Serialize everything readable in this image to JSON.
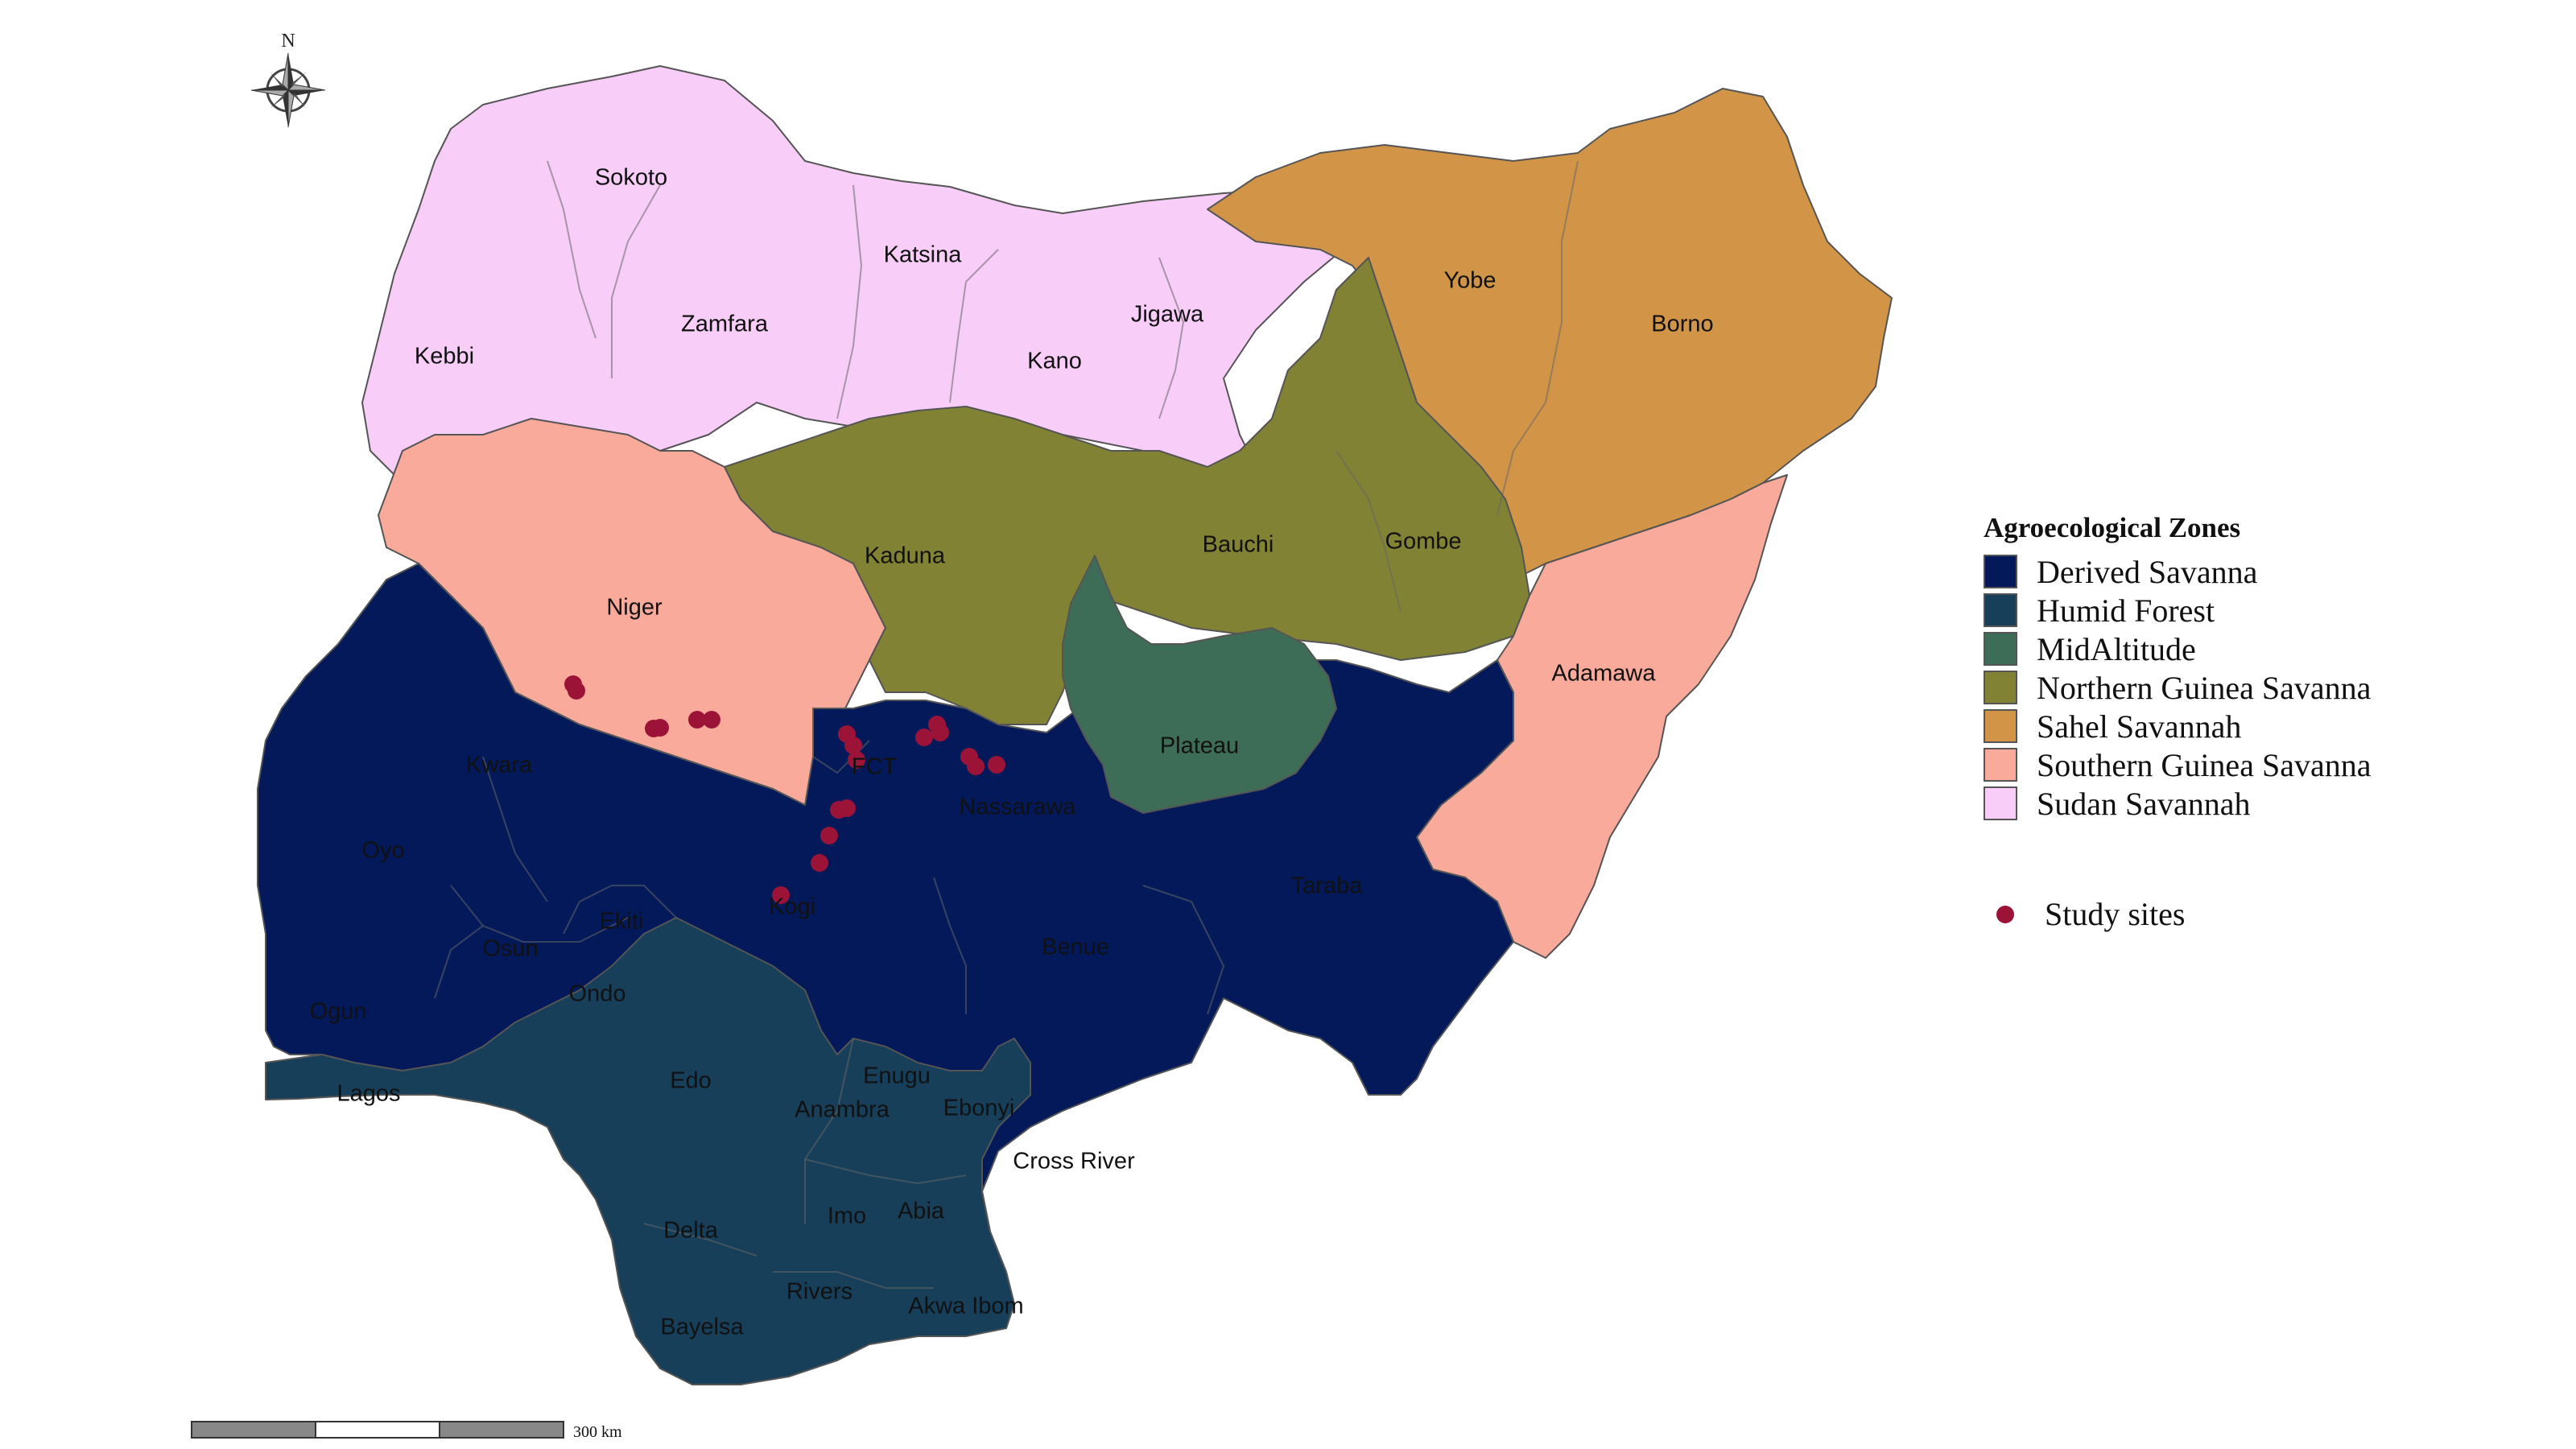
{
  "map": {
    "compass_label": "N",
    "scale_label": "300 km",
    "colors": {
      "derived_savanna": "#03195A",
      "humid_forest": "#173F5A",
      "midaltitude": "#3D6C57",
      "northern_guinea_savanna": "#818234",
      "sahel_savannah": "#D29548",
      "southern_guinea_savanna": "#F9AA9B",
      "sudan_savannah": "#F8CDF8",
      "study_site": "#9B1438"
    },
    "states": [
      {
        "name": "Sokoto",
        "zone": "sudan_savannah"
      },
      {
        "name": "Katsina",
        "zone": "sudan_savannah"
      },
      {
        "name": "Zamfara",
        "zone": "sudan_savannah"
      },
      {
        "name": "Jigawa",
        "zone": "sudan_savannah"
      },
      {
        "name": "Kebbi",
        "zone": "sudan_savannah"
      },
      {
        "name": "Kano",
        "zone": "sudan_savannah"
      },
      {
        "name": "Yobe",
        "zone": "sahel_savannah"
      },
      {
        "name": "Borno",
        "zone": "sahel_savannah"
      },
      {
        "name": "Kaduna",
        "zone": "northern_guinea_savanna"
      },
      {
        "name": "Bauchi",
        "zone": "northern_guinea_savanna"
      },
      {
        "name": "Gombe",
        "zone": "northern_guinea_savanna"
      },
      {
        "name": "Niger",
        "zone": "southern_guinea_savanna"
      },
      {
        "name": "Adamawa",
        "zone": "southern_guinea_savanna"
      },
      {
        "name": "Plateau",
        "zone": "midaltitude"
      },
      {
        "name": "Kwara",
        "zone": "derived_savanna"
      },
      {
        "name": "FCT",
        "zone": "derived_savanna"
      },
      {
        "name": "Nassarawa",
        "zone": "derived_savanna"
      },
      {
        "name": "Oyo",
        "zone": "derived_savanna"
      },
      {
        "name": "Taraba",
        "zone": "derived_savanna"
      },
      {
        "name": "Kogi",
        "zone": "derived_savanna"
      },
      {
        "name": "Ekiti",
        "zone": "derived_savanna"
      },
      {
        "name": "Osun",
        "zone": "derived_savanna"
      },
      {
        "name": "Benue",
        "zone": "derived_savanna"
      },
      {
        "name": "Ogun",
        "zone": "derived_savanna"
      },
      {
        "name": "Ondo",
        "zone": "humid_forest"
      },
      {
        "name": "Lagos",
        "zone": "humid_forest"
      },
      {
        "name": "Edo",
        "zone": "humid_forest"
      },
      {
        "name": "Enugu",
        "zone": "derived_savanna"
      },
      {
        "name": "Anambra",
        "zone": "humid_forest"
      },
      {
        "name": "Ebonyi",
        "zone": "humid_forest"
      },
      {
        "name": "Cross River",
        "zone": "derived_savanna"
      },
      {
        "name": "Delta",
        "zone": "humid_forest"
      },
      {
        "name": "Imo",
        "zone": "humid_forest"
      },
      {
        "name": "Abia",
        "zone": "humid_forest"
      },
      {
        "name": "Rivers",
        "zone": "humid_forest"
      },
      {
        "name": "Akwa Ibom",
        "zone": "humid_forest"
      },
      {
        "name": "Bayelsa",
        "zone": "humid_forest"
      }
    ]
  },
  "legend": {
    "title": "Agroecological Zones",
    "items": [
      {
        "label": "Derived Savanna",
        "zone": "derived_savanna"
      },
      {
        "label": "Humid Forest",
        "zone": "humid_forest"
      },
      {
        "label": "MidAltitude",
        "zone": "midaltitude"
      },
      {
        "label": "Northern Guinea Savanna",
        "zone": "northern_guinea_savanna"
      },
      {
        "label": "Sahel Savannah",
        "zone": "sahel_savannah"
      },
      {
        "label": "Southern Guinea Savanna",
        "zone": "southern_guinea_savanna"
      },
      {
        "label": "Sudan Savannah",
        "zone": "sudan_savannah"
      }
    ],
    "sites_label": "Study sites"
  }
}
